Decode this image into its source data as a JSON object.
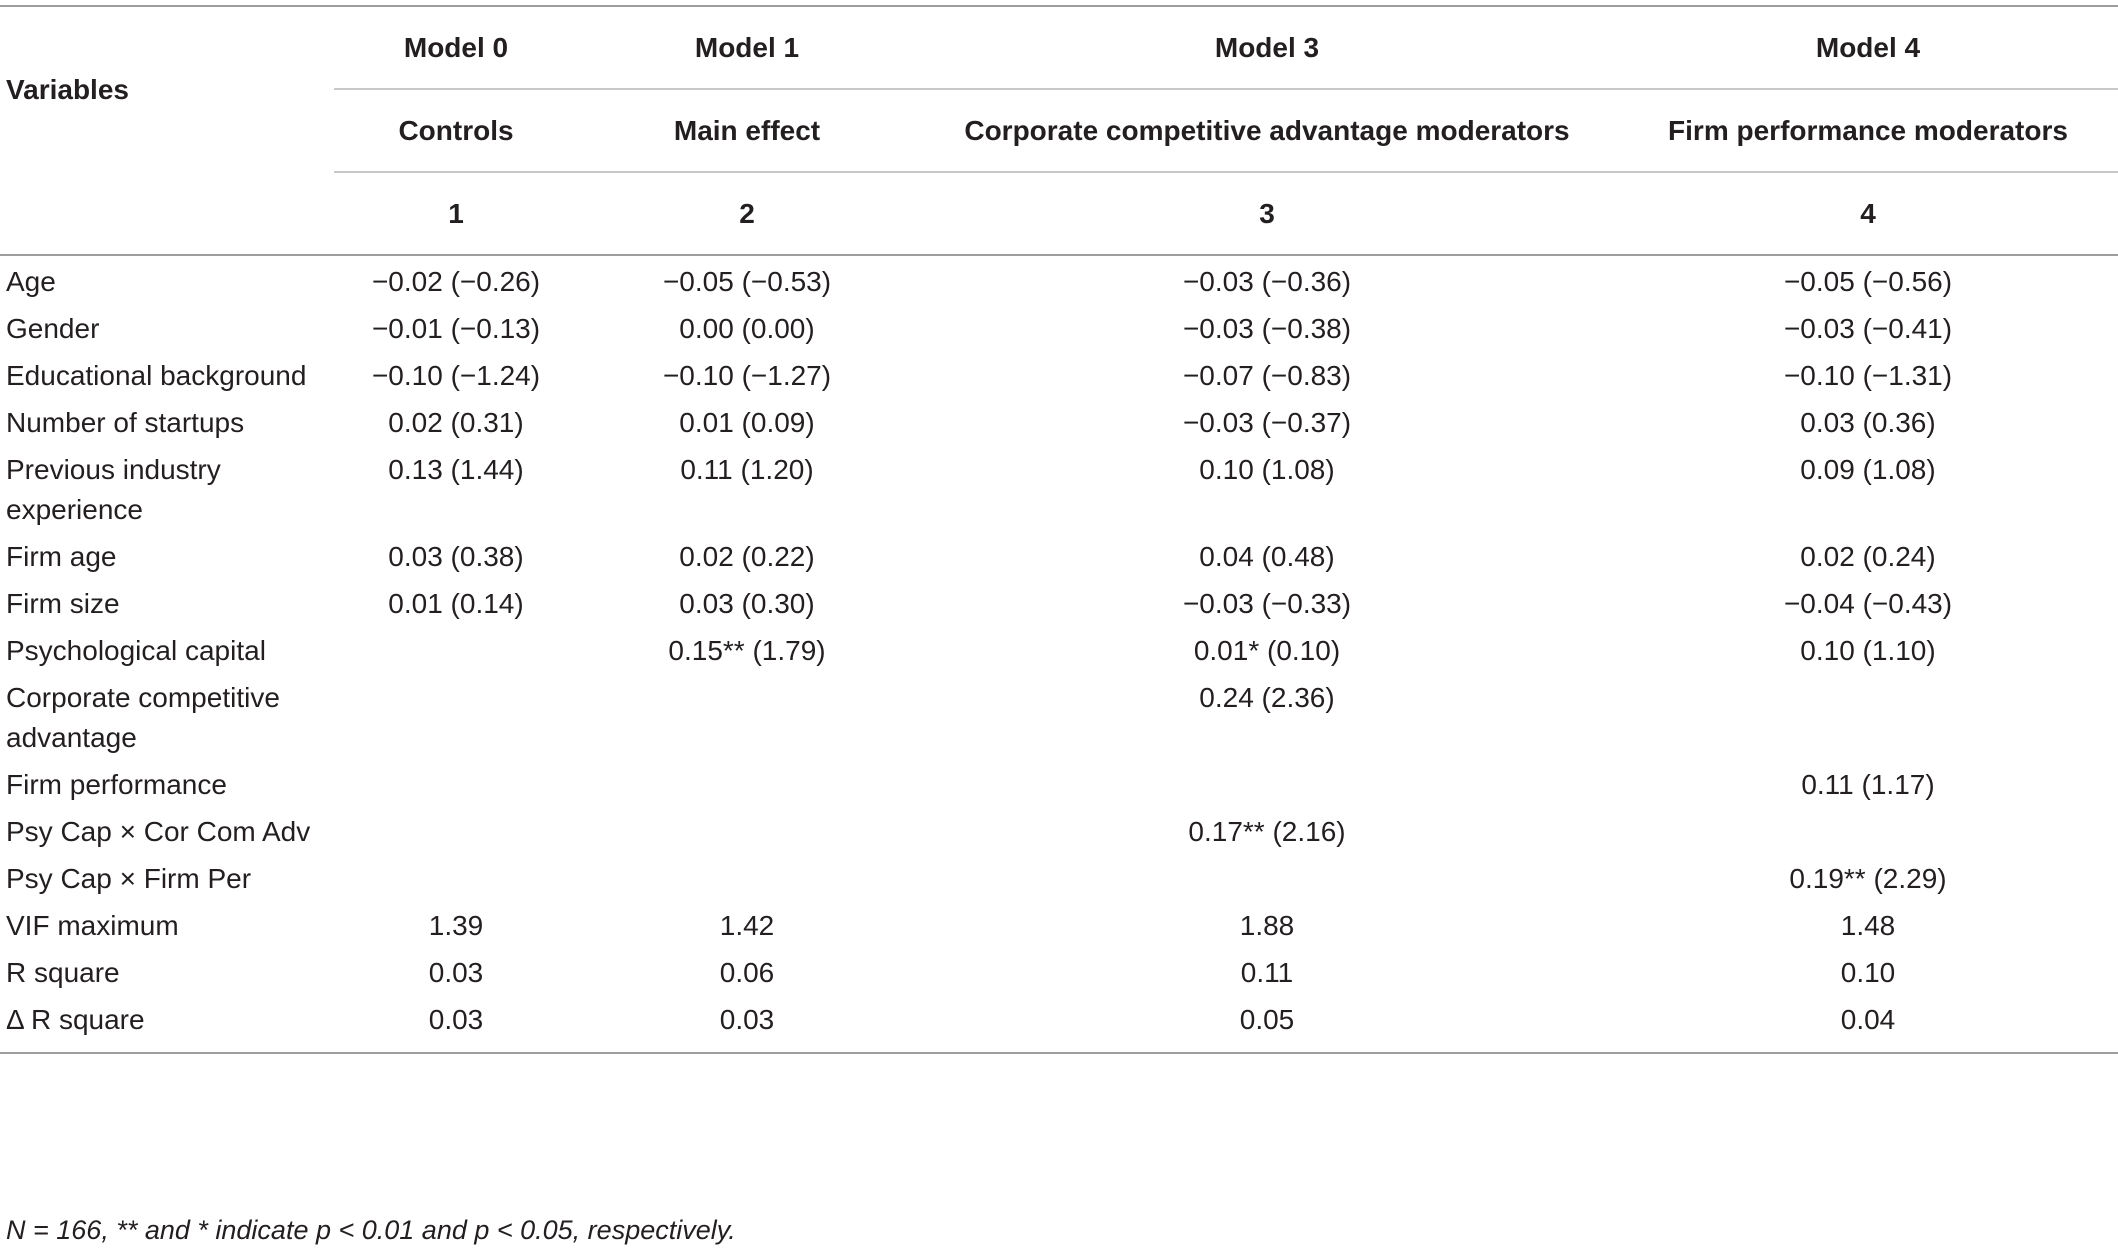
{
  "header": {
    "variables_label": "Variables",
    "models": [
      {
        "name": "Model 0",
        "subtitle": "Controls",
        "number": "1"
      },
      {
        "name": "Model 1",
        "subtitle": "Main effect",
        "number": "2"
      },
      {
        "name": "Model 3",
        "subtitle": "Corporate competitive advantage moderators",
        "number": "3"
      },
      {
        "name": "Model 4",
        "subtitle": "Firm performance moderators",
        "number": "4"
      }
    ]
  },
  "rows": [
    {
      "variable": "Age",
      "values": [
        "−0.02 (−0.26)",
        "−0.05 (−0.53)",
        "−0.03 (−0.36)",
        "−0.05 (−0.56)"
      ]
    },
    {
      "variable": "Gender",
      "values": [
        "−0.01 (−0.13)",
        "0.00 (0.00)",
        "−0.03 (−0.38)",
        "−0.03 (−0.41)"
      ]
    },
    {
      "variable": "Educational background",
      "values": [
        "−0.10 (−1.24)",
        "−0.10 (−1.27)",
        "−0.07 (−0.83)",
        "−0.10 (−1.31)"
      ]
    },
    {
      "variable": "Number of startups",
      "values": [
        "0.02 (0.31)",
        "0.01 (0.09)",
        "−0.03 (−0.37)",
        "0.03 (0.36)"
      ]
    },
    {
      "variable": "Previous industry experience",
      "values": [
        "0.13 (1.44)",
        "0.11 (1.20)",
        "0.10 (1.08)",
        "0.09 (1.08)"
      ]
    },
    {
      "variable": "Firm age",
      "values": [
        "0.03 (0.38)",
        "0.02 (0.22)",
        "0.04 (0.48)",
        "0.02 (0.24)"
      ]
    },
    {
      "variable": "Firm size",
      "values": [
        "0.01 (0.14)",
        "0.03 (0.30)",
        "−0.03 (−0.33)",
        "−0.04 (−0.43)"
      ]
    },
    {
      "variable": "Psychological capital",
      "values": [
        "",
        "0.15** (1.79)",
        "0.01* (0.10)",
        "0.10 (1.10)"
      ]
    },
    {
      "variable": "Corporate competitive advantage",
      "values": [
        "",
        "",
        "0.24 (2.36)",
        ""
      ]
    },
    {
      "variable": "Firm performance",
      "values": [
        "",
        "",
        "",
        "0.11 (1.17)"
      ]
    },
    {
      "variable": "Psy Cap × Cor Com Adv",
      "values": [
        "",
        "",
        "0.17** (2.16)",
        ""
      ]
    },
    {
      "variable": "Psy Cap × Firm Per",
      "values": [
        "",
        "",
        "",
        "0.19** (2.29)"
      ]
    },
    {
      "variable": "VIF maximum",
      "values": [
        "1.39",
        "1.42",
        "1.88",
        "1.48"
      ]
    },
    {
      "variable": "R square",
      "values": [
        "0.03",
        "0.06",
        "0.11",
        "0.10"
      ]
    },
    {
      "variable": "Δ R square",
      "values": [
        "0.03",
        "0.03",
        "0.05",
        "0.04"
      ]
    }
  ],
  "note": "N = 166, ** and * indicate p < 0.01 and p < 0.05, respectively."
}
